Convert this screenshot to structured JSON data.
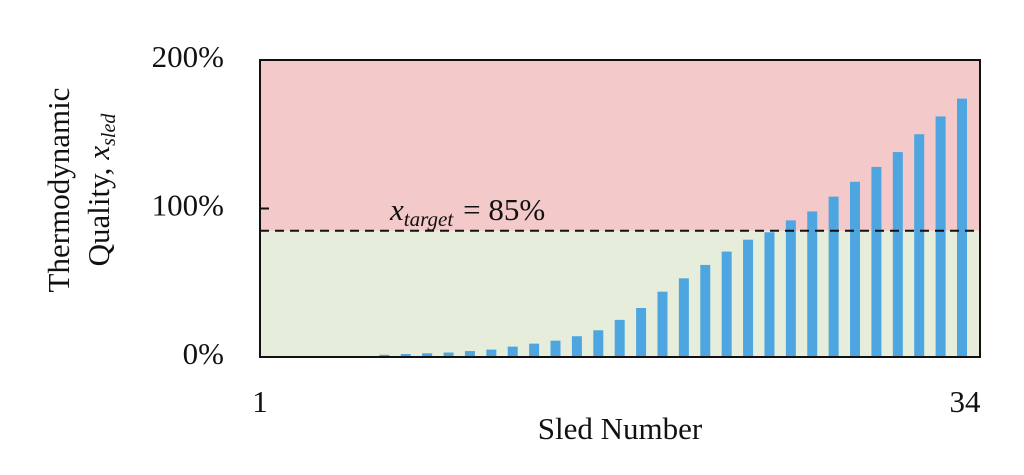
{
  "chart_data": {
    "type": "bar",
    "y_label": {
      "line1": "Thermodynamic",
      "line2": "Quality,",
      "symbol": "x",
      "subscript": "sled"
    },
    "x_label": "Sled Number",
    "categories": [
      "1",
      null,
      null,
      null,
      null,
      null,
      null,
      null,
      null,
      null,
      null,
      null,
      null,
      null,
      null,
      null,
      null,
      null,
      null,
      null,
      null,
      null,
      null,
      null,
      null,
      null,
      null,
      null,
      null,
      null,
      null,
      null,
      null,
      "34"
    ],
    "values": [
      0,
      0,
      0,
      0,
      0,
      0,
      1.5,
      2,
      2.5,
      3,
      4,
      5,
      7,
      9,
      11,
      14,
      18,
      25,
      33,
      44,
      53,
      62,
      71,
      79,
      84,
      92,
      98,
      108,
      118,
      128,
      138,
      150,
      162,
      174
    ],
    "color": "#4ea6e0",
    "ylim": [
      0,
      200
    ],
    "yticks": [
      {
        "value": 0,
        "label": "0%"
      },
      {
        "value": 100,
        "label": "100%"
      },
      {
        "value": 200,
        "label": "200%"
      }
    ],
    "annotation": {
      "symbol": "x",
      "subscript": "target",
      "text": "= 85%",
      "value": 85
    },
    "regions": {
      "above_color": "#f3c9c9",
      "below_color": "#e6eedb"
    }
  }
}
